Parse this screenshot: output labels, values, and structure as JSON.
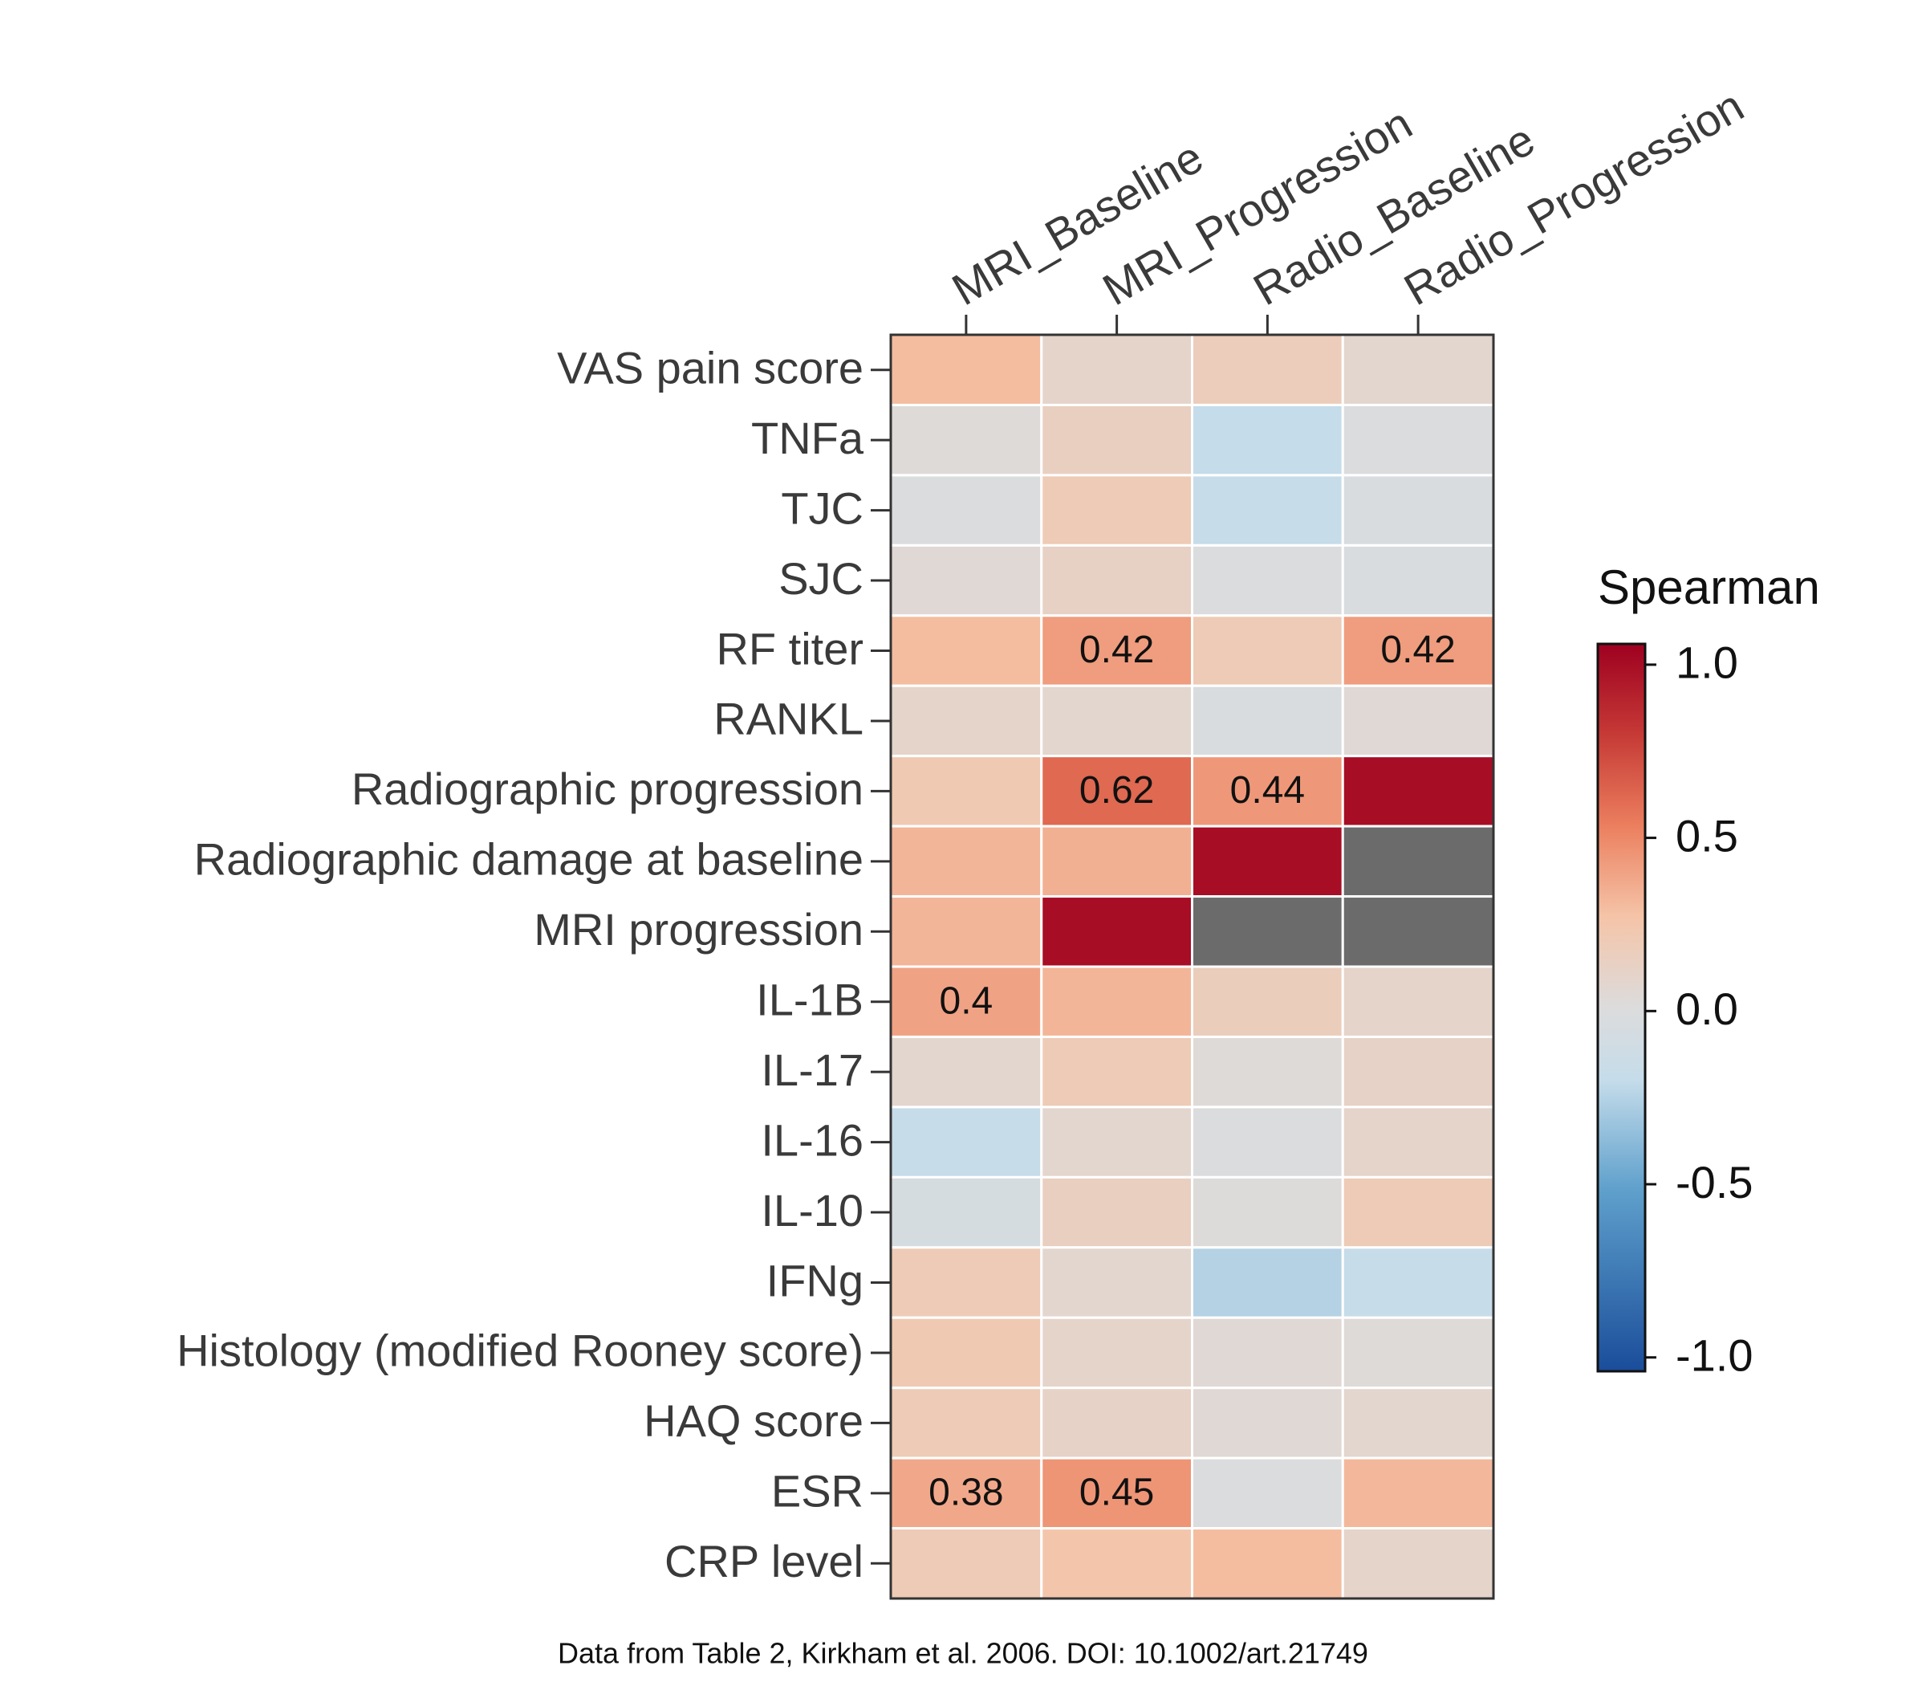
{
  "chart_data": {
    "type": "heatmap",
    "footnote": "Data from Table 2, Kirkham et al. 2006. DOI: 10.1002/art.21749",
    "x_categories": [
      "MRI_Baseline",
      "MRI_Progression",
      "Radio_Baseline",
      "Radio_Progression"
    ],
    "y_categories": [
      "VAS pain score",
      "TNFa",
      "TJC",
      "SJC",
      "RF titer",
      "RANKL",
      "Radiographic progression",
      "Radiographic damage at baseline",
      "MRI progression",
      "IL-1B",
      "IL-17",
      "IL-16",
      "IL-10",
      "IFNg",
      "Histology (modified Rooney score)",
      "HAQ score",
      "ESR",
      "CRP level"
    ],
    "values": [
      [
        0.3,
        0.1,
        0.18,
        0.08
      ],
      [
        0.03,
        0.15,
        -0.2,
        0.0
      ],
      [
        0.0,
        0.2,
        -0.18,
        -0.03
      ],
      [
        0.05,
        0.13,
        0.0,
        -0.03
      ],
      [
        0.3,
        0.42,
        0.2,
        0.42
      ],
      [
        0.1,
        0.08,
        -0.03,
        0.05
      ],
      [
        0.22,
        0.62,
        0.44,
        1.0
      ],
      [
        0.33,
        0.35,
        1.0,
        null
      ],
      [
        0.33,
        1.0,
        null,
        null
      ],
      [
        0.4,
        0.33,
        0.17,
        0.1
      ],
      [
        0.08,
        0.2,
        0.03,
        0.12
      ],
      [
        -0.18,
        0.08,
        0.0,
        0.1
      ],
      [
        -0.05,
        0.15,
        0.02,
        0.2
      ],
      [
        0.2,
        0.08,
        -0.25,
        -0.18
      ],
      [
        0.22,
        0.1,
        0.05,
        0.03
      ],
      [
        0.2,
        0.12,
        0.05,
        0.08
      ],
      [
        0.38,
        0.45,
        0.0,
        0.32
      ],
      [
        0.2,
        0.25,
        0.3,
        0.1
      ]
    ],
    "value_labels": [
      [
        null,
        null,
        null,
        null
      ],
      [
        null,
        null,
        null,
        null
      ],
      [
        null,
        null,
        null,
        null
      ],
      [
        null,
        null,
        null,
        null
      ],
      [
        null,
        "0.42",
        null,
        "0.42"
      ],
      [
        null,
        null,
        null,
        null
      ],
      [
        null,
        "0.62",
        "0.44",
        null
      ],
      [
        null,
        null,
        null,
        null
      ],
      [
        null,
        null,
        null,
        null
      ],
      [
        "0.4",
        null,
        null,
        null
      ],
      [
        null,
        null,
        null,
        null
      ],
      [
        null,
        null,
        null,
        null
      ],
      [
        null,
        null,
        null,
        null
      ],
      [
        null,
        null,
        null,
        null
      ],
      [
        null,
        null,
        null,
        null
      ],
      [
        null,
        null,
        null,
        null
      ],
      [
        "0.38",
        "0.45",
        null,
        null
      ],
      [
        null,
        null,
        null,
        null
      ]
    ],
    "missing_color": "#6b6b6b",
    "colorbar": {
      "label": "Spearman",
      "lim": [
        -1.04,
        1.06
      ],
      "ticks": [
        {
          "value": -1,
          "label": "-1.0"
        },
        {
          "value": -0.5,
          "label": "-0.5"
        },
        {
          "value": 0,
          "label": "0.0"
        },
        {
          "value": 0.5,
          "label": "0.5"
        },
        {
          "value": 1,
          "label": "1.0"
        }
      ]
    }
  }
}
